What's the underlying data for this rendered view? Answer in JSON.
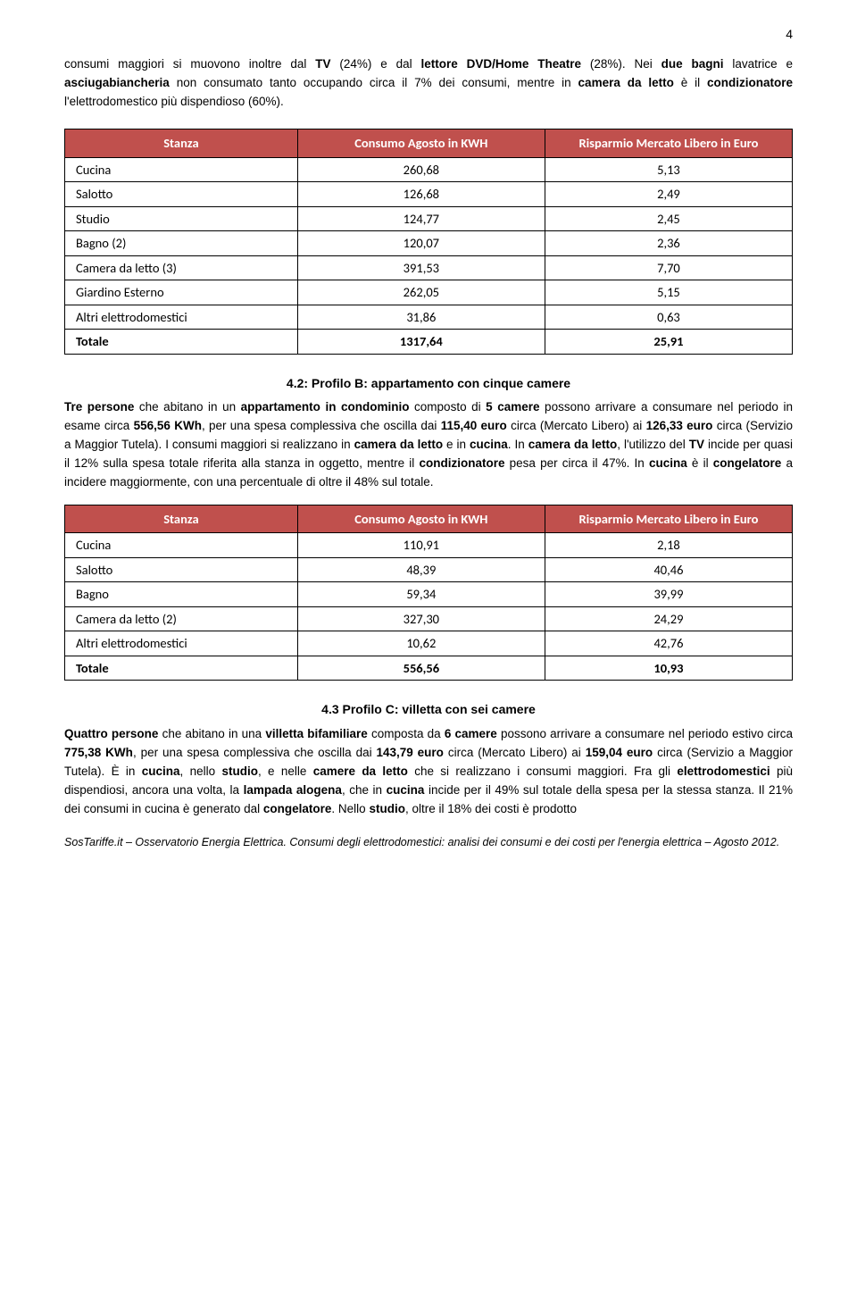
{
  "page_number": "4",
  "intro_paragraph": {
    "p1_a": "consumi maggiori si muovono inoltre dal ",
    "p1_b": "TV",
    "p1_c": " (24%) e dal ",
    "p1_d": "lettore DVD/Home Theatre",
    "p1_e": " (28%). Nei ",
    "p1_f": "due bagni",
    "p1_g": " lavatrice e ",
    "p1_h": "asciugabiancheria",
    "p1_i": " non consumato tanto occupando circa il 7% dei consumi, mentre in ",
    "p1_j": "camera da letto",
    "p1_k": " è il ",
    "p1_l": "condizionatore",
    "p1_m": " l'elettrodomestico più dispendioso (60%)."
  },
  "table1": {
    "headers": {
      "c1": "Stanza",
      "c2": "Consumo Agosto  in KWH",
      "c3": "Risparmio Mercato Libero in Euro"
    },
    "rows": [
      {
        "c1": "Cucina",
        "c2": "260,68",
        "c3": "5,13"
      },
      {
        "c1": "Salotto",
        "c2": "126,68",
        "c3": "2,49"
      },
      {
        "c1": "Studio",
        "c2": "124,77",
        "c3": "2,45"
      },
      {
        "c1": "Bagno (2)",
        "c2": "120,07",
        "c3": "2,36"
      },
      {
        "c1": "Camera da letto (3)",
        "c2": "391,53",
        "c3": "7,70"
      },
      {
        "c1": "Giardino Esterno",
        "c2": "262,05",
        "c3": "5,15"
      },
      {
        "c1": "Altri elettrodomestici",
        "c2": "31,86",
        "c3": "0,63"
      }
    ],
    "total": {
      "c1": "Totale",
      "c2": "1317,64",
      "c3": "25,91"
    }
  },
  "section_b": {
    "heading": "4.2: Profilo B: appartamento con cinque camere",
    "p1_a": "Tre persone",
    "p1_b": " che abitano in un ",
    "p1_c": "appartamento in condominio",
    "p1_d": " composto di ",
    "p1_e": "5 camere",
    "p1_f": " possono arrivare a consumare nel periodo in esame circa ",
    "p1_g": "556,56 KWh",
    "p1_h": ", per una spesa complessiva che oscilla dai ",
    "p1_i": "115,40 euro",
    "p1_j": " circa (Mercato Libero) ai ",
    "p1_k": "126,33 euro",
    "p1_l": " circa (Servizio a Maggior Tutela). I consumi maggiori si realizzano in ",
    "p1_m": "camera da letto",
    "p1_n": " e in ",
    "p1_o": "cucina",
    "p1_p": ". In ",
    "p1_q": "camera da letto",
    "p1_r": ", l'utilizzo del ",
    "p1_s": "TV",
    "p1_t": " incide per quasi il 12% sulla spesa totale riferita alla stanza in oggetto, mentre il ",
    "p1_u": "condizionatore",
    "p1_v": " pesa per circa il 47%. In ",
    "p1_w": "cucina",
    "p1_x": " è il ",
    "p1_y": "congelatore",
    "p1_z": " a incidere maggiormente, con una percentuale di oltre il 48% sul totale."
  },
  "table2": {
    "headers": {
      "c1": "Stanza",
      "c2": "Consumo Agosto in KWH",
      "c3": "Risparmio Mercato Libero in Euro"
    },
    "rows": [
      {
        "c1": "Cucina",
        "c2": "110,91",
        "c3": "2,18"
      },
      {
        "c1": "Salotto",
        "c2": "48,39",
        "c3": "40,46"
      },
      {
        "c1": "Bagno",
        "c2": "59,34",
        "c3": "39,99"
      },
      {
        "c1": "Camera da letto (2)",
        "c2": "327,30",
        "c3": "24,29"
      },
      {
        "c1": "Altri elettrodomestici",
        "c2": "10,62",
        "c3": "42,76"
      }
    ],
    "total": {
      "c1": "Totale",
      "c2": "556,56",
      "c3": "10,93"
    }
  },
  "section_c": {
    "heading": "4.3 Profilo C: villetta con sei camere",
    "p1_a": "Quattro persone",
    "p1_b": " che abitano in una ",
    "p1_c": "villetta bifamiliare",
    "p1_d": " composta da ",
    "p1_e": "6 camere",
    "p1_f": " possono arrivare a consumare nel periodo estivo circa ",
    "p1_g": "775,38 KWh",
    "p1_h": ", per una spesa complessiva che oscilla dai ",
    "p1_i": "143,79 euro",
    "p1_j": " circa (Mercato Libero) ai ",
    "p1_k": "159,04 euro",
    "p1_l": " circa (Servizio a Maggior Tutela). È in ",
    "p1_m": "cucina",
    "p1_n": ", nello ",
    "p1_o": "studio",
    "p1_p": ", e nelle ",
    "p1_q": "camere da letto",
    "p1_r": " che si realizzano i consumi maggiori. Fra gli ",
    "p1_s": "elettrodomestici",
    "p1_t": " più dispendiosi, ancora una volta, la ",
    "p1_u": "lampada alogena",
    "p1_v": ", che in ",
    "p1_w": "cucina",
    "p1_x": " incide per il 49% sul totale della spesa per la stessa stanza. Il 21% dei consumi in cucina è generato dal ",
    "p1_y": "congelatore",
    "p1_z": ".  Nello ",
    "p1_za": "studio",
    "p1_zb": ", oltre il 18% dei costi è prodotto"
  },
  "footer": "SosTariffe.it – Osservatorio Energia Elettrica. Consumi degli elettrodomestici: analisi dei consumi e dei costi per l'energia elettrica – Agosto 2012.",
  "colors": {
    "header_bg": "#c0504d",
    "header_fg": "#ffffff",
    "border": "#000000",
    "text": "#000000"
  }
}
